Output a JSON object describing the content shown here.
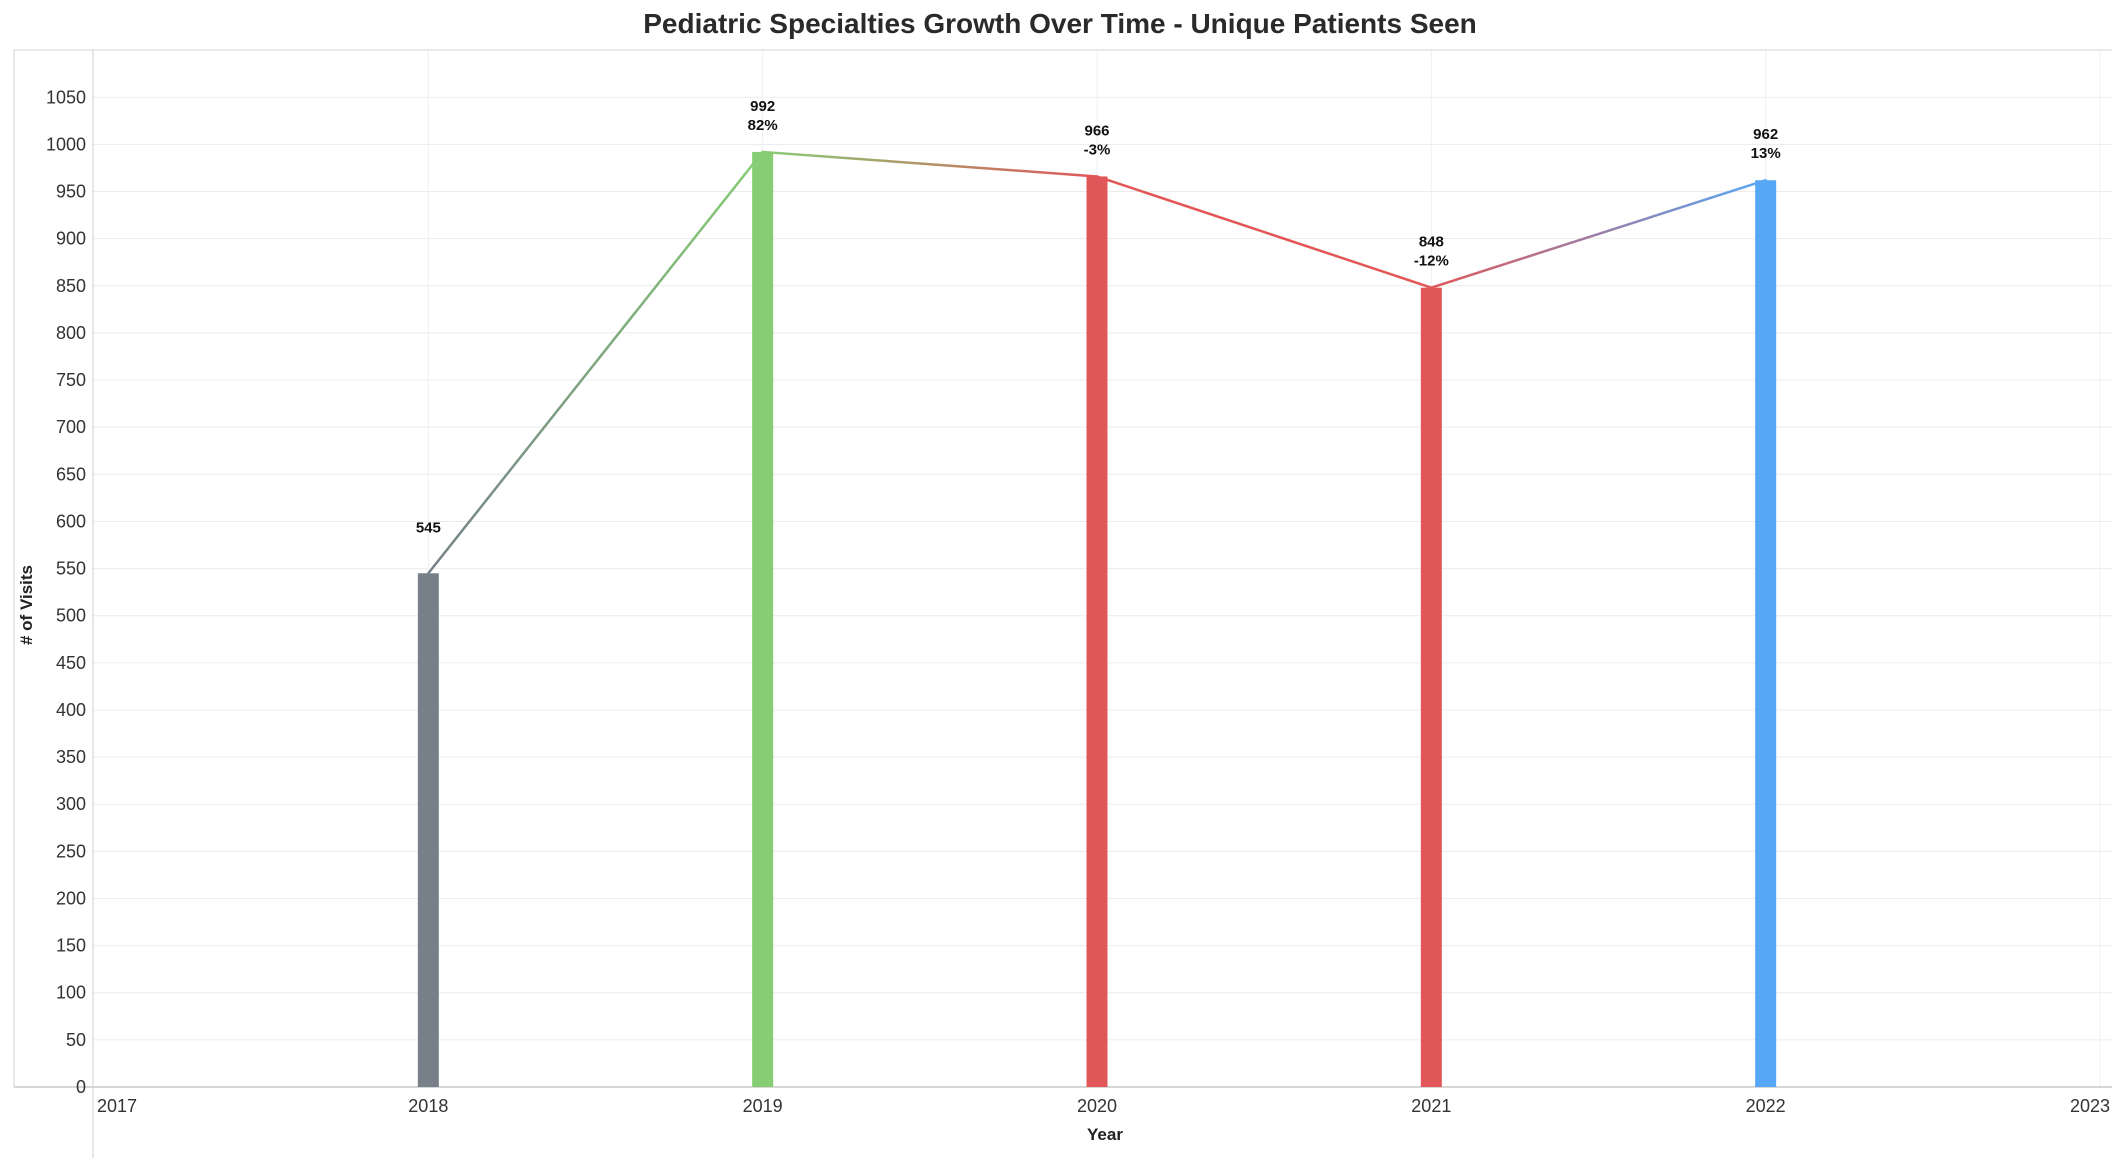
{
  "chart_data": {
    "type": "bar",
    "title": "Pediatric Specialties Growth Over Time - Unique Patients Seen",
    "xlabel": "Year",
    "ylabel": "# of Visits",
    "x_ticks": [
      "2017",
      "2018",
      "2019",
      "2020",
      "2021",
      "2022",
      "2023"
    ],
    "xlim": [
      2017,
      2023
    ],
    "ylim": [
      0,
      1100
    ],
    "y_ticks": [
      0,
      50,
      100,
      150,
      200,
      250,
      300,
      350,
      400,
      450,
      500,
      550,
      600,
      650,
      700,
      750,
      800,
      850,
      900,
      950,
      1000,
      1050
    ],
    "grid": true,
    "legend": "none",
    "bars": [
      {
        "year": 2018,
        "value": 545,
        "change": "",
        "color": "#778089"
      },
      {
        "year": 2019,
        "value": 992,
        "change": "82%",
        "color": "#86cd74"
      },
      {
        "year": 2020,
        "value": 966,
        "change": "-3%",
        "color": "#e15759"
      },
      {
        "year": 2021,
        "value": 848,
        "change": "-12%",
        "color": "#e15759"
      },
      {
        "year": 2022,
        "value": 962,
        "change": "13%",
        "color": "#56a8f6"
      }
    ],
    "trend_line": {
      "type": "line",
      "connects": "bar tops",
      "colors": "gradient between adjacent bar colors"
    }
  }
}
